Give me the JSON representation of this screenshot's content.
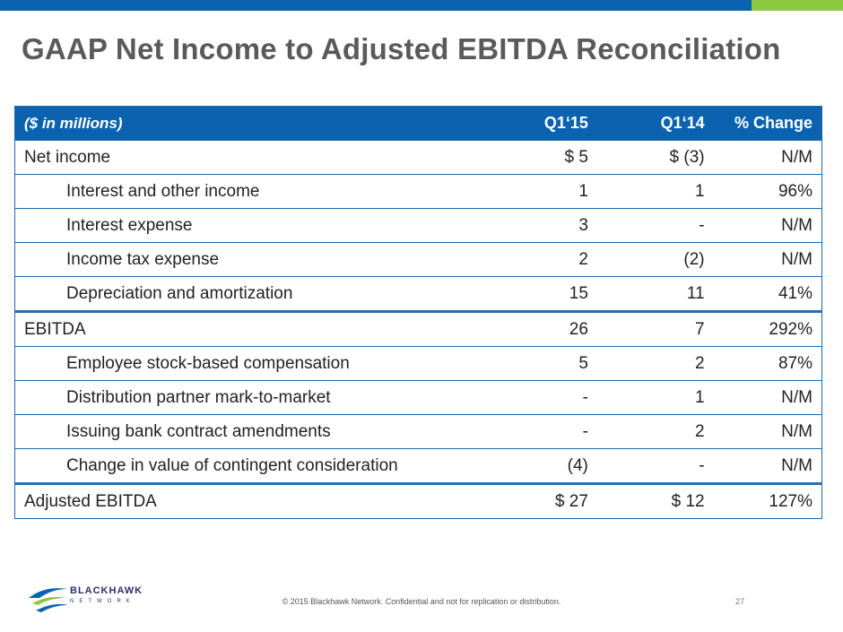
{
  "title": "GAAP Net Income to Adjusted EBITDA Reconciliation",
  "table": {
    "header": {
      "label": "($ in millions)",
      "q1_15": "Q1‘15",
      "q1_14": "Q1‘14",
      "change": "% Change"
    },
    "rows": [
      {
        "label": "Net income",
        "q1_15": "$    5",
        "q1_14": "$  (3)",
        "change": "N/M"
      },
      {
        "label": "Interest and other income",
        "q1_15": "1",
        "q1_14": "1",
        "change": "96%"
      },
      {
        "label": "Interest expense",
        "q1_15": "3",
        "q1_14": "-",
        "change": "N/M"
      },
      {
        "label": "Income tax expense",
        "q1_15": "2",
        "q1_14": "(2)",
        "change": "N/M"
      },
      {
        "label": "Depreciation and amortization",
        "q1_15": "15",
        "q1_14": "11",
        "change": "41%"
      },
      {
        "label": "EBITDA",
        "q1_15": "26",
        "q1_14": "7",
        "change": "292%"
      },
      {
        "label": "Employee stock-based compensation",
        "q1_15": "5",
        "q1_14": "2",
        "change": "87%"
      },
      {
        "label": "Distribution partner mark-to-market",
        "q1_15": "-",
        "q1_14": "1",
        "change": "N/M"
      },
      {
        "label": "Issuing bank contract amendments",
        "q1_15": "-",
        "q1_14": "2",
        "change": "N/M"
      },
      {
        "label": "Change in value of contingent consideration",
        "q1_15": "(4)",
        "q1_14": "-",
        "change": "N/M"
      },
      {
        "label": "Adjusted EBITDA",
        "q1_15": "$  27",
        "q1_14": "$  12",
        "change": "127%"
      }
    ]
  },
  "logo": {
    "name": "BLACKHAWK",
    "sub": "NETWORK"
  },
  "footer": {
    "copyright": "© 2015 Blackhawk Network. Confidential and not for replication or distribution.",
    "page_number": "27"
  },
  "colors": {
    "brand_blue": "#0b63b0",
    "brand_green": "#8dc63f",
    "title_gray": "#5a5a5a"
  }
}
